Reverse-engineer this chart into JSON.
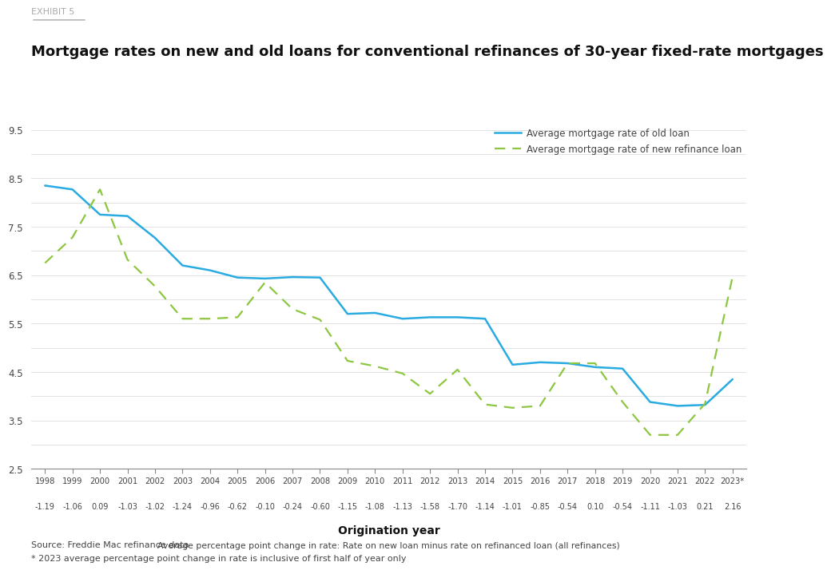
{
  "years": [
    "1998",
    "1999",
    "2000",
    "2001",
    "2002",
    "2003",
    "2004",
    "2005",
    "2006",
    "2007",
    "2008",
    "2009",
    "2010",
    "2011",
    "2012",
    "2013",
    "2014",
    "2015",
    "2016",
    "2017",
    "2018",
    "2019",
    "2020",
    "2021",
    "2022",
    "2023*"
  ],
  "old_loan": [
    8.35,
    8.27,
    7.75,
    7.72,
    7.27,
    6.7,
    6.6,
    6.45,
    6.43,
    6.46,
    6.45,
    5.7,
    5.72,
    5.6,
    5.63,
    5.63,
    5.6,
    4.65,
    4.7,
    4.68,
    4.6,
    4.57,
    3.88,
    3.8,
    3.82,
    4.35
  ],
  "new_loan": [
    6.75,
    7.28,
    8.27,
    6.82,
    6.27,
    5.6,
    5.6,
    5.63,
    6.35,
    5.8,
    5.58,
    4.73,
    4.62,
    4.47,
    4.05,
    4.55,
    3.83,
    3.76,
    3.8,
    4.68,
    4.68,
    3.88,
    3.2,
    3.2,
    3.85,
    6.47
  ],
  "pct_changes": [
    "-1.19",
    "-1.06",
    "0.09",
    "-1.03",
    "-1.02",
    "-1.24",
    "-0.96",
    "-0.62",
    "-0.10",
    "-0.24",
    "-0.60",
    "-1.15",
    "-1.08",
    "-1.13",
    "-1.58",
    "-1.70",
    "-1.14",
    "-1.01",
    "-0.85",
    "-0.54",
    "0.10",
    "-0.54",
    "-1.11",
    "-1.03",
    "0.21",
    "2.16"
  ],
  "old_loan_color": "#29ABE2",
  "new_loan_color": "#8DC63F",
  "title": "Mortgage rates on new and old loans for conventional refinances of 30-year fixed-rate mortgages",
  "exhibit_label": "EXHIBIT 5",
  "ylim": [
    2.5,
    9.5
  ],
  "yticks": [
    2.5,
    3.5,
    4.5,
    5.5,
    6.5,
    7.5,
    8.5,
    9.5
  ],
  "ytick_minor": [
    3.0,
    4.0,
    5.0,
    6.0,
    7.0,
    8.0,
    9.0
  ],
  "legend_old": "Average mortgage rate of old loan",
  "legend_new": "Average mortgage rate of new refinance loan",
  "xlabel_main": "Origination year",
  "xlabel_sub": "Average percentage point change in rate: Rate on new loan minus rate on refinanced loan (all refinances)",
  "source_text": "Source: Freddie Mac refinance data",
  "footnote_text": "* 2023 average percentage point change in rate is inclusive of first half of year only",
  "background_color": "#FFFFFF",
  "grid_color": "#DDDDDD",
  "spine_color": "#888888",
  "tick_label_color": "#444444",
  "title_color": "#111111",
  "exhibit_color": "#AAAAAA"
}
